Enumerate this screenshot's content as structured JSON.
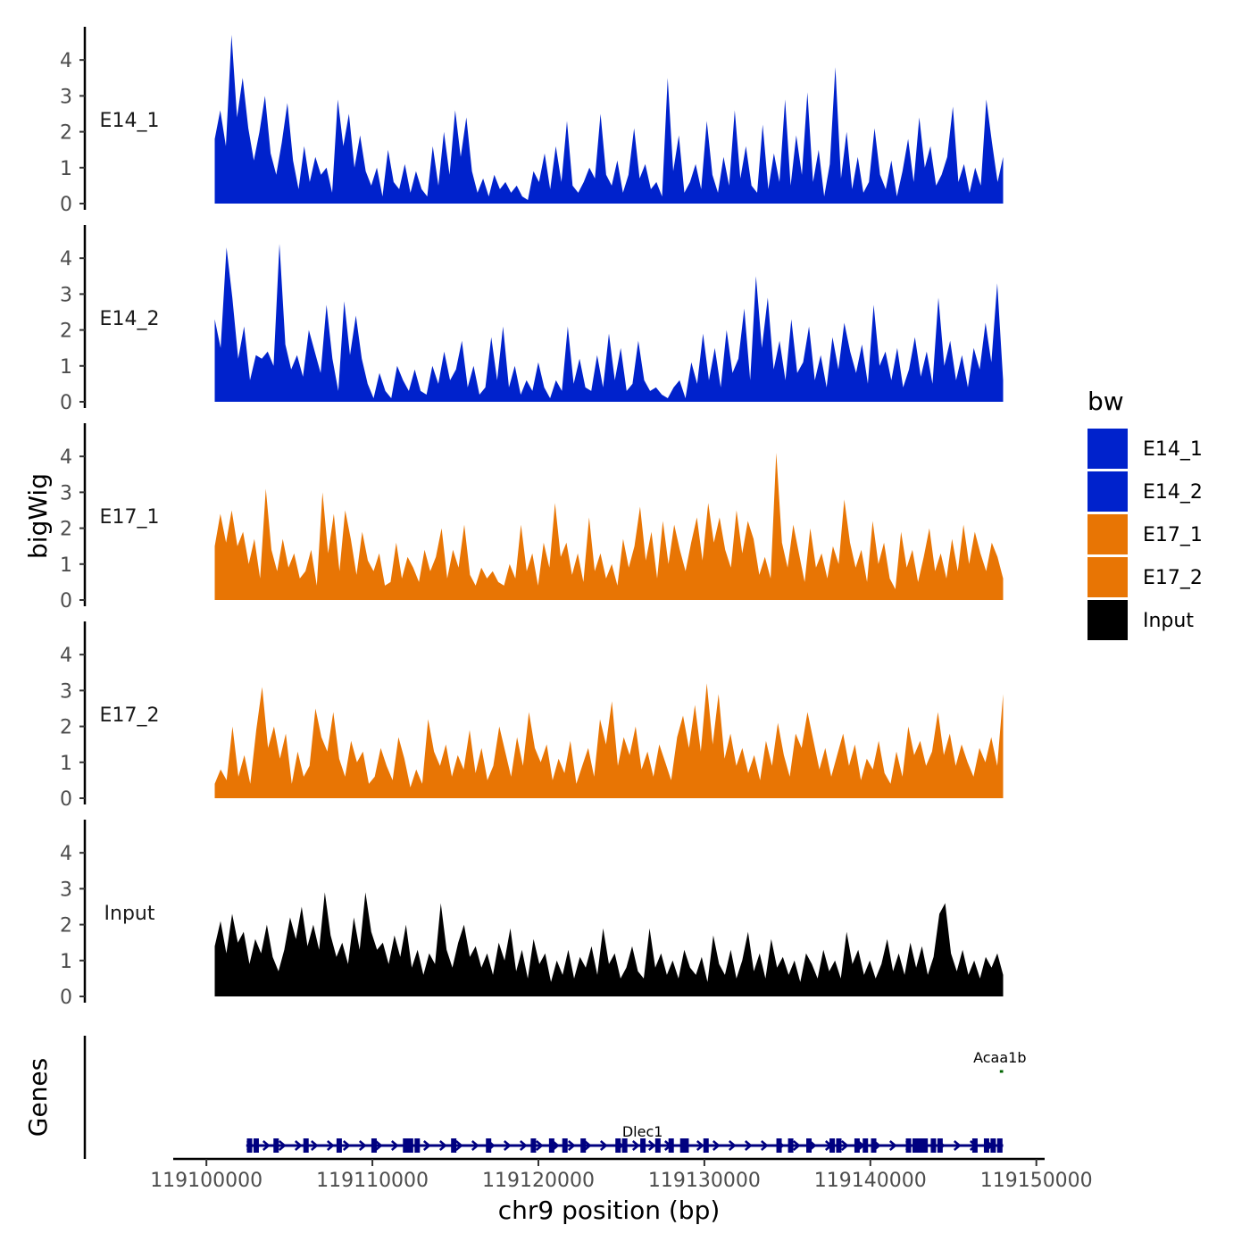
{
  "chart_data": {
    "type": "area",
    "chromosome": "chr9",
    "xlabel": "chr9 position (bp)",
    "ylabel": "bigWig",
    "genes_label": "Genes",
    "xlim": [
      119098000,
      119150500
    ],
    "x_data_range": [
      119100500,
      119148000
    ],
    "xticks": [
      119100000,
      119110000,
      119120000,
      119130000,
      119140000,
      119150000
    ],
    "ylim": [
      0,
      4.8
    ],
    "yticks": [
      0,
      1,
      2,
      3,
      4
    ],
    "legend": {
      "title": "bw",
      "position": "right",
      "entries": [
        {
          "label": "E14_1",
          "color": "#0022CC"
        },
        {
          "label": "E14_2",
          "color": "#0022CC"
        },
        {
          "label": "E17_1",
          "color": "#E87504"
        },
        {
          "label": "E17_2",
          "color": "#E87504"
        },
        {
          "label": "Input",
          "color": "#000000"
        }
      ]
    },
    "tracks": [
      {
        "name": "E14_1",
        "color": "#0022CC",
        "values": [
          1.8,
          2.6,
          1.6,
          4.7,
          2.4,
          3.5,
          2.1,
          1.2,
          2.0,
          3.0,
          1.4,
          0.8,
          1.7,
          2.8,
          1.2,
          0.4,
          1.6,
          0.6,
          1.3,
          0.8,
          1.0,
          0.3,
          2.9,
          1.6,
          2.5,
          1.0,
          1.9,
          0.9,
          0.5,
          1.0,
          0.2,
          1.5,
          0.6,
          0.4,
          1.1,
          0.3,
          0.9,
          0.4,
          0.2,
          1.6,
          0.5,
          2.0,
          0.8,
          2.6,
          1.3,
          2.4,
          0.9,
          0.3,
          0.7,
          0.2,
          0.8,
          0.4,
          0.6,
          0.3,
          0.5,
          0.2,
          0.1,
          0.9,
          0.6,
          1.4,
          0.4,
          1.6,
          0.6,
          2.3,
          0.5,
          0.3,
          0.6,
          1.0,
          0.7,
          2.5,
          0.8,
          0.5,
          1.2,
          0.3,
          0.8,
          2.1,
          0.7,
          1.1,
          0.4,
          0.6,
          0.2,
          3.5,
          0.9,
          1.9,
          0.3,
          0.6,
          1.1,
          0.4,
          2.3,
          0.8,
          0.3,
          1.3,
          0.5,
          2.6,
          0.7,
          1.6,
          0.5,
          0.3,
          2.2,
          0.4,
          1.4,
          0.6,
          2.9,
          0.5,
          1.9,
          0.8,
          3.1,
          0.6,
          1.5,
          0.2,
          1.1,
          3.8,
          0.7,
          2.0,
          0.4,
          1.3,
          0.3,
          0.6,
          2.1,
          0.8,
          0.4,
          1.2,
          0.2,
          0.9,
          1.8,
          0.6,
          2.4,
          1.0,
          1.6,
          0.5,
          0.8,
          1.3,
          2.7,
          0.6,
          1.1,
          0.3,
          1.0,
          0.5,
          2.9,
          1.7,
          0.6,
          1.3
        ]
      },
      {
        "name": "E14_2",
        "color": "#0022CC",
        "values": [
          2.3,
          1.5,
          4.3,
          2.9,
          1.2,
          2.1,
          0.6,
          1.3,
          1.2,
          1.4,
          1.0,
          4.4,
          1.6,
          0.9,
          1.3,
          0.7,
          2.0,
          1.4,
          0.8,
          2.7,
          1.2,
          0.3,
          2.8,
          1.3,
          2.4,
          1.2,
          0.5,
          0.1,
          0.8,
          0.3,
          0.1,
          1.0,
          0.6,
          0.3,
          0.9,
          0.3,
          0.2,
          1.0,
          0.5,
          1.4,
          0.6,
          0.9,
          1.7,
          0.4,
          1.0,
          0.2,
          0.4,
          1.8,
          0.6,
          2.1,
          0.4,
          1.0,
          0.2,
          0.6,
          0.3,
          1.1,
          0.4,
          0.1,
          0.6,
          0.3,
          2.1,
          0.5,
          1.2,
          0.4,
          0.3,
          1.3,
          0.4,
          1.9,
          0.6,
          1.5,
          0.3,
          0.5,
          1.7,
          0.6,
          0.3,
          0.4,
          0.2,
          0.1,
          0.4,
          0.6,
          0.1,
          1.1,
          0.5,
          1.9,
          0.6,
          1.5,
          0.4,
          2.0,
          0.8,
          1.2,
          2.6,
          0.6,
          3.5,
          1.5,
          2.9,
          0.9,
          1.7,
          0.6,
          2.3,
          0.8,
          1.1,
          2.1,
          0.6,
          1.3,
          0.4,
          1.8,
          0.9,
          2.2,
          1.4,
          0.8,
          1.6,
          0.5,
          2.7,
          1.0,
          1.4,
          0.6,
          1.5,
          0.4,
          0.9,
          1.8,
          0.7,
          1.4,
          0.5,
          2.9,
          1.0,
          1.7,
          0.6,
          1.3,
          0.4,
          1.5,
          0.9,
          2.2,
          1.1,
          3.3,
          0.6
        ]
      },
      {
        "name": "E17_1",
        "color": "#E87504",
        "values": [
          1.5,
          2.4,
          1.6,
          2.5,
          1.5,
          1.9,
          1.0,
          1.7,
          0.6,
          3.1,
          1.4,
          0.8,
          1.7,
          0.9,
          1.3,
          0.6,
          0.8,
          1.4,
          0.4,
          3.0,
          1.3,
          2.4,
          0.8,
          2.5,
          1.7,
          0.7,
          1.9,
          1.1,
          0.8,
          1.3,
          0.4,
          0.5,
          1.6,
          0.6,
          1.2,
          0.9,
          0.5,
          1.4,
          0.8,
          1.2,
          2.0,
          0.6,
          1.4,
          0.9,
          2.1,
          0.7,
          0.4,
          0.9,
          0.6,
          0.8,
          0.5,
          0.4,
          1.0,
          0.6,
          2.1,
          0.8,
          1.3,
          0.4,
          1.6,
          0.9,
          2.7,
          1.2,
          1.6,
          0.7,
          1.3,
          0.5,
          2.3,
          0.8,
          1.3,
          0.6,
          1.0,
          0.4,
          1.7,
          0.9,
          1.5,
          2.6,
          1.1,
          1.9,
          0.6,
          2.2,
          1.0,
          2.1,
          1.4,
          0.8,
          1.6,
          2.3,
          1.1,
          2.7,
          1.6,
          2.3,
          1.4,
          0.9,
          2.5,
          1.3,
          2.2,
          1.7,
          0.7,
          1.2,
          0.6,
          4.1,
          1.6,
          0.9,
          2.1,
          1.3,
          0.5,
          2.0,
          0.9,
          1.3,
          0.6,
          1.5,
          1.0,
          2.8,
          1.6,
          0.9,
          1.4,
          0.5,
          2.2,
          1.0,
          1.6,
          0.6,
          0.3,
          1.9,
          0.9,
          1.4,
          0.5,
          1.2,
          2.0,
          0.8,
          1.3,
          0.6,
          1.7,
          0.8,
          2.1,
          1.0,
          1.9,
          1.3,
          0.8,
          1.6,
          1.2,
          0.6
        ]
      },
      {
        "name": "E17_2",
        "color": "#E87504",
        "values": [
          0.4,
          0.8,
          0.5,
          2.0,
          0.6,
          1.2,
          0.4,
          1.9,
          3.1,
          1.4,
          2.0,
          1.1,
          1.8,
          0.4,
          1.3,
          0.6,
          0.9,
          2.5,
          1.7,
          1.3,
          2.4,
          1.1,
          0.6,
          1.6,
          1.0,
          1.3,
          0.4,
          0.6,
          1.4,
          0.9,
          0.5,
          1.7,
          1.1,
          0.3,
          0.8,
          0.4,
          2.2,
          1.3,
          0.9,
          1.5,
          0.6,
          1.2,
          0.8,
          1.9,
          0.7,
          1.4,
          0.5,
          0.9,
          2.0,
          1.3,
          0.6,
          1.7,
          0.9,
          2.4,
          1.4,
          1.0,
          1.5,
          0.5,
          1.1,
          0.7,
          1.6,
          0.4,
          0.9,
          1.4,
          0.6,
          2.2,
          1.5,
          2.7,
          0.9,
          1.7,
          1.2,
          2.0,
          0.8,
          1.3,
          0.6,
          1.5,
          1.0,
          0.5,
          1.7,
          2.3,
          1.4,
          2.6,
          1.3,
          3.2,
          1.5,
          2.9,
          1.1,
          1.8,
          0.9,
          1.4,
          0.7,
          1.2,
          0.5,
          1.6,
          0.9,
          2.1,
          1.2,
          0.6,
          1.8,
          1.4,
          2.4,
          1.6,
          0.8,
          1.4,
          0.6,
          1.2,
          1.8,
          0.9,
          1.5,
          0.5,
          1.1,
          0.8,
          1.6,
          0.7,
          0.4,
          1.3,
          0.6,
          2.0,
          1.2,
          1.6,
          0.9,
          1.3,
          2.4,
          1.2,
          1.8,
          0.9,
          1.5,
          1.0,
          0.6,
          1.4,
          1.0,
          1.7,
          0.9,
          2.9
        ]
      },
      {
        "name": "Input",
        "color": "#000000",
        "values": [
          1.4,
          2.1,
          1.2,
          2.3,
          1.5,
          1.8,
          0.9,
          1.6,
          1.2,
          2.0,
          1.1,
          0.7,
          1.3,
          2.2,
          1.6,
          2.5,
          1.4,
          2.0,
          1.3,
          2.9,
          1.7,
          1.1,
          1.5,
          0.9,
          2.2,
          1.3,
          2.9,
          1.8,
          1.3,
          1.5,
          0.9,
          1.7,
          1.1,
          2.0,
          0.8,
          1.3,
          0.6,
          1.2,
          0.9,
          2.6,
          1.3,
          0.8,
          1.5,
          2.0,
          1.1,
          1.4,
          0.8,
          1.2,
          0.6,
          1.5,
          1.0,
          1.9,
          0.7,
          1.3,
          0.5,
          1.6,
          0.9,
          1.2,
          0.4,
          1.0,
          0.6,
          1.3,
          0.5,
          1.1,
          0.8,
          1.4,
          0.6,
          1.9,
          0.9,
          1.2,
          0.5,
          0.8,
          1.4,
          0.7,
          0.5,
          1.9,
          0.8,
          1.2,
          0.6,
          1.0,
          0.5,
          1.3,
          0.8,
          0.6,
          1.1,
          0.4,
          1.7,
          0.9,
          0.6,
          1.3,
          0.5,
          1.0,
          1.8,
          0.7,
          1.2,
          0.5,
          1.6,
          0.8,
          1.1,
          0.6,
          1.0,
          0.4,
          1.2,
          0.9,
          0.5,
          1.3,
          0.7,
          1.0,
          0.5,
          1.8,
          0.9,
          1.3,
          0.6,
          1.0,
          0.5,
          0.9,
          1.6,
          0.7,
          1.2,
          0.6,
          1.5,
          0.8,
          1.4,
          0.6,
          1.1,
          2.3,
          2.6,
          1.2,
          0.7,
          1.3,
          0.6,
          1.0,
          0.5,
          1.1,
          0.8,
          1.2,
          0.6
        ]
      }
    ],
    "genes": [
      {
        "name": "Dlec1",
        "start": 119102400,
        "end": 119148000,
        "strand": "+",
        "color": "#000080",
        "exons": [
          119102600,
          119103000,
          119104200,
          119106000,
          119108000,
          119110100,
          119112000,
          119112300,
          119112700,
          119114900,
          119117000,
          119119700,
          119120800,
          119121600,
          119122700,
          119124800,
          119125200,
          119126300,
          119127200,
          119128000,
          119128700,
          119128900,
          119130100,
          119134500,
          119135200,
          119136300,
          119137700,
          119138100,
          119139200,
          119139700,
          119140200,
          119142300,
          119142700,
          119143000,
          119143300,
          119143800,
          119144200,
          119146300,
          119147000,
          119147400,
          119147800
        ]
      },
      {
        "name": "Acaa1b",
        "start": 119147800,
        "end": 119148000,
        "strand": "-",
        "color": "#006400",
        "exons": []
      }
    ]
  }
}
